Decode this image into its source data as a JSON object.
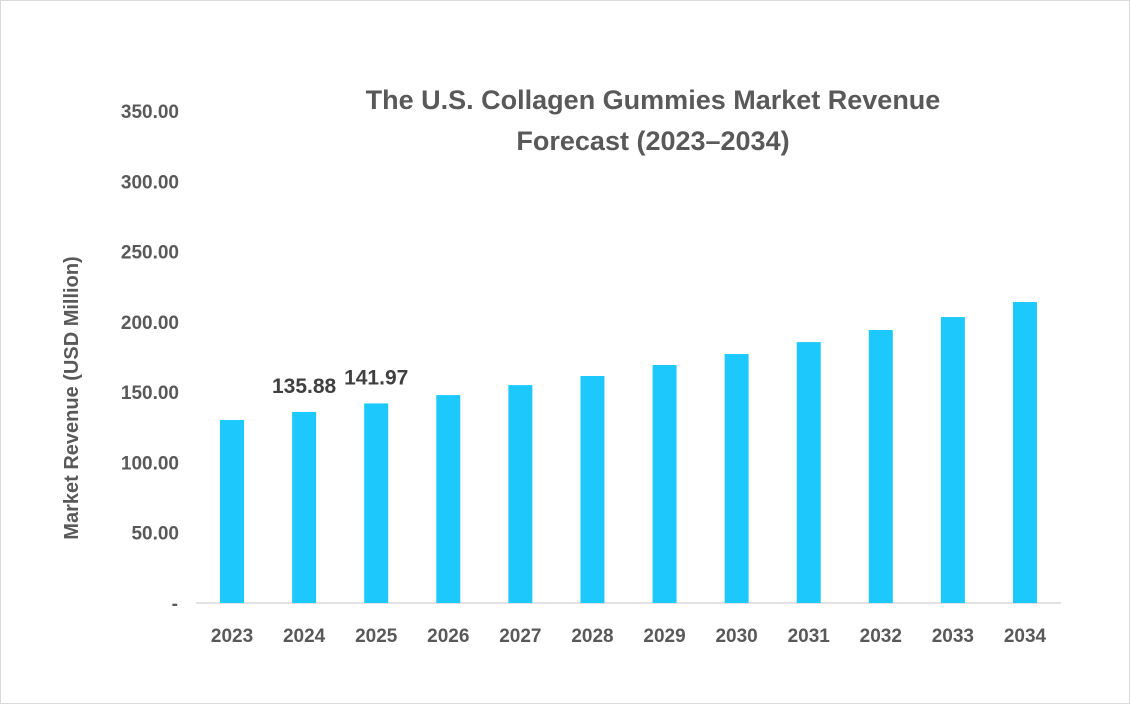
{
  "chart_data": {
    "type": "bar",
    "title": "The U.S. Collagen Gummies Market Revenue Forecast (2023–2034)",
    "title_lines": [
      "The U.S. Collagen Gummies Market Revenue",
      "Forecast (2023–2034)"
    ],
    "xlabel": "",
    "ylabel": "Market Revenue (USD Million)",
    "categories": [
      "2023",
      "2024",
      "2025",
      "2026",
      "2027",
      "2028",
      "2029",
      "2030",
      "2031",
      "2032",
      "2033",
      "2034"
    ],
    "values": [
      130.2,
      135.88,
      141.97,
      147.9,
      155.0,
      161.5,
      169.3,
      177.1,
      185.6,
      194.2,
      203.4,
      214.1
    ],
    "data_labels": [
      null,
      "135.88",
      "141.97",
      null,
      null,
      null,
      null,
      null,
      null,
      null,
      null,
      null
    ],
    "ylim": [
      0,
      350
    ],
    "yticks": [
      0,
      50,
      100,
      150,
      200,
      250,
      300,
      350
    ],
    "ytick_labels": [
      "-",
      "50.00",
      "100.00",
      "150.00",
      "200.00",
      "250.00",
      "300.00",
      "350.00"
    ],
    "grid": false,
    "legend": "none",
    "bar_color": "#1cc8fc"
  }
}
